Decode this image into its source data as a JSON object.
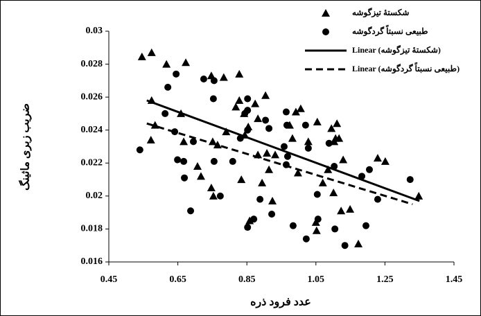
{
  "chart_data": {
    "type": "scatter",
    "x_label": "عدد فرود ذره",
    "y_label": "ضریب زبری ماثینگ",
    "xlim": [
      0.45,
      1.45
    ],
    "xticks": [
      0.45,
      0.65,
      0.85,
      1.05,
      1.25,
      1.45
    ],
    "ylim": [
      0.016,
      0.03
    ],
    "yticks": [
      0.016,
      0.018,
      0.02,
      0.022,
      0.024,
      0.026,
      0.028,
      0.03
    ],
    "grid": false,
    "legend": "top-right",
    "series": [
      {
        "name": "شکستهٔ تیزگوشه",
        "color": "#000000",
        "marker": "triangle",
        "x": [
          0.546,
          0.574,
          0.574,
          0.584,
          0.572,
          0.617,
          0.659,
          0.667,
          0.673,
          0.707,
          0.747,
          0.751,
          0.747,
          0.753,
          0.765,
          0.783,
          0.79,
          0.828,
          0.818,
          0.828,
          0.834,
          0.842,
          0.844,
          0.854,
          0.874,
          0.882,
          0.882,
          0.894,
          0.904,
          0.908,
          0.914,
          0.924,
          0.932,
          0.858,
          0.974,
          0.982,
          0.992,
          0.998,
          1.006,
          1.028,
          1.05,
          1.052,
          1.054,
          1.07,
          1.085,
          1.095,
          1.101,
          1.103,
          1.111,
          1.107,
          1.117,
          1.123,
          1.129,
          1.149,
          1.173,
          1.229,
          1.251,
          1.348,
          0.717
        ],
        "values": [
          0.02845,
          0.0287,
          0.0258,
          0.0243,
          0.0234,
          0.028,
          0.025,
          0.0233,
          0.0281,
          0.0218,
          0.0273,
          0.0233,
          0.0205,
          0.02,
          0.0231,
          0.0272,
          0.0239,
          0.0258,
          0.0254,
          0.0274,
          0.021,
          0.025,
          0.0237,
          0.0242,
          0.0256,
          0.0247,
          0.0225,
          0.0208,
          0.0261,
          0.0226,
          0.0216,
          0.0197,
          0.0225,
          0.0185,
          0.0243,
          0.0235,
          0.0251,
          0.0214,
          0.0253,
          0.0233,
          0.0184,
          0.0179,
          0.0245,
          0.0208,
          0.0216,
          0.0241,
          0.0202,
          0.0233,
          0.0244,
          0.0235,
          0.0235,
          0.0191,
          0.0222,
          0.0192,
          0.0171,
          0.0223,
          0.0221,
          0.02,
          0.0212
        ]
      },
      {
        "name": "طبیعی نسبتاً گردگوشه",
        "color": "#000000",
        "marker": "circle",
        "x": [
          0.54,
          0.621,
          0.613,
          0.645,
          0.641,
          0.649,
          0.667,
          0.669,
          0.687,
          0.695,
          0.725,
          0.755,
          0.753,
          0.755,
          0.773,
          0.809,
          0.831,
          0.844,
          0.852,
          0.852,
          0.852,
          0.852,
          0.87,
          0.888,
          0.904,
          0.914,
          0.922,
          0.958,
          0.964,
          0.964,
          0.966,
          0.968,
          0.984,
          1.02,
          1.028,
          1.022,
          1.054,
          1.056,
          1.088,
          1.103,
          1.105,
          1.134,
          1.183,
          1.195,
          1.205,
          1.229,
          1.323
        ],
        "values": [
          0.0228,
          0.0266,
          0.025,
          0.0274,
          0.0239,
          0.0222,
          0.0221,
          0.0211,
          0.0191,
          0.0233,
          0.0271,
          0.027,
          0.0259,
          0.0221,
          0.02,
          0.0221,
          0.0235,
          0.025,
          0.0252,
          0.024,
          0.0259,
          0.0181,
          0.0186,
          0.0198,
          0.0246,
          0.0241,
          0.0189,
          0.023,
          0.0219,
          0.0251,
          0.0243,
          0.0224,
          0.0182,
          0.0243,
          0.0229,
          0.0174,
          0.0201,
          0.0186,
          0.0232,
          0.0218,
          0.018,
          0.017,
          0.0212,
          0.0182,
          0.0216,
          0.0198,
          0.021
        ]
      },
      {
        "name": "Linear (شکستهٔ تیزگوشه)",
        "color": "#000000",
        "marker": "line",
        "dash": false,
        "x": [
          0.56,
          1.35
        ],
        "values": [
          0.0258,
          0.0197
        ]
      },
      {
        "name": "Linear (طبیعی نسبتاً گردگوشه)",
        "color": "#000000",
        "marker": "line",
        "dash": true,
        "x": [
          0.56,
          1.33
        ],
        "values": [
          0.0244,
          0.0195
        ]
      }
    ]
  }
}
